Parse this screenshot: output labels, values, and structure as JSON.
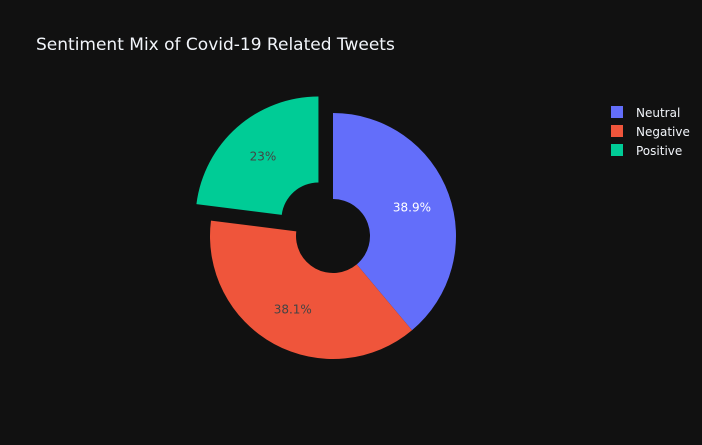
{
  "chart_data": {
    "type": "pie",
    "title": "Sentiment Mix of Covid-19 Related Tweets",
    "hole": true,
    "pulled_slice": "Positive",
    "legend_placement": "top-right",
    "slices": [
      {
        "label": "Neutral",
        "value": 38.9,
        "text": "38.9%",
        "color": "#636efa",
        "text_color": "#ffffff"
      },
      {
        "label": "Negative",
        "value": 38.1,
        "text": "38.1%",
        "color": "#ef553b",
        "text_color": "#444444"
      },
      {
        "label": "Positive",
        "value": 23.0,
        "text": "23%",
        "color": "#00cc96",
        "text_color": "#444444"
      }
    ],
    "background": "#111111"
  }
}
